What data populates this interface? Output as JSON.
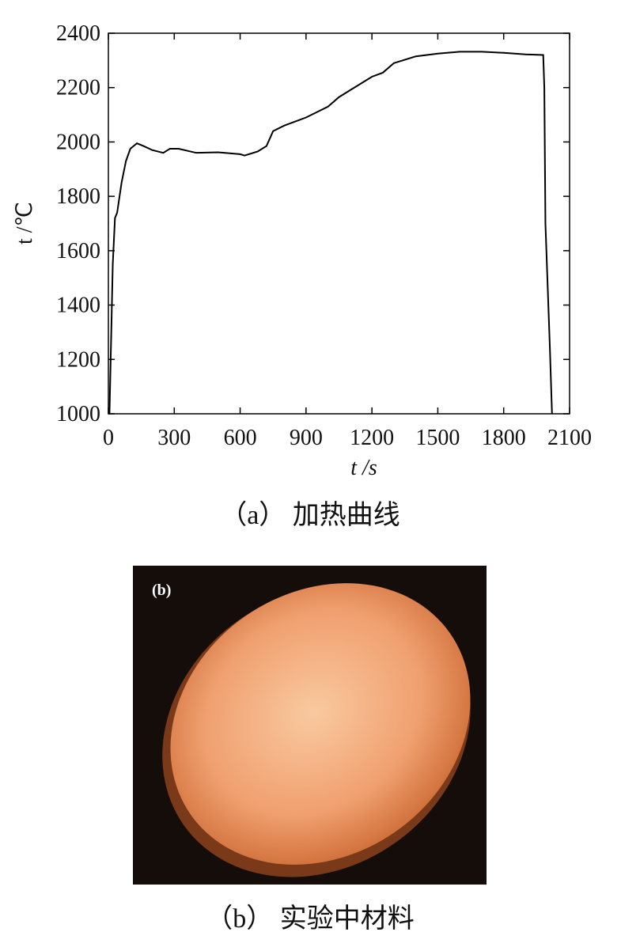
{
  "chart_data": {
    "type": "line",
    "xlabel": "t /s",
    "ylabel": "t /℃",
    "caption": "（a） 加热曲线",
    "x": [
      5,
      20,
      30,
      40,
      60,
      80,
      100,
      130,
      160,
      200,
      250,
      280,
      320,
      400,
      500,
      600,
      620,
      680,
      720,
      750,
      800,
      900,
      1000,
      1050,
      1100,
      1200,
      1250,
      1300,
      1400,
      1500,
      1600,
      1700,
      1800,
      1900,
      1980,
      1985,
      1990,
      2010,
      2020
    ],
    "series": [
      {
        "color": "#000000",
        "values": [
          1000,
          1550,
          1720,
          1740,
          1850,
          1930,
          1975,
          1995,
          1985,
          1970,
          1960,
          1975,
          1975,
          1960,
          1962,
          1955,
          1950,
          1965,
          1985,
          2040,
          2060,
          2090,
          2130,
          2165,
          2190,
          2240,
          2255,
          2290,
          2315,
          2325,
          2332,
          2332,
          2328,
          2322,
          2320,
          2200,
          1700,
          1250,
          1000
        ]
      }
    ],
    "xlim": [
      0,
      2100
    ],
    "xticks": [
      0,
      300,
      600,
      900,
      1200,
      1500,
      1800,
      2100
    ],
    "ylim": [
      1000,
      2400
    ],
    "yticks": [
      1000,
      1200,
      1400,
      1600,
      1800,
      2000,
      2200,
      2400
    ]
  },
  "photo": {
    "label": "(b)",
    "caption": "（b） 实验中材料"
  }
}
